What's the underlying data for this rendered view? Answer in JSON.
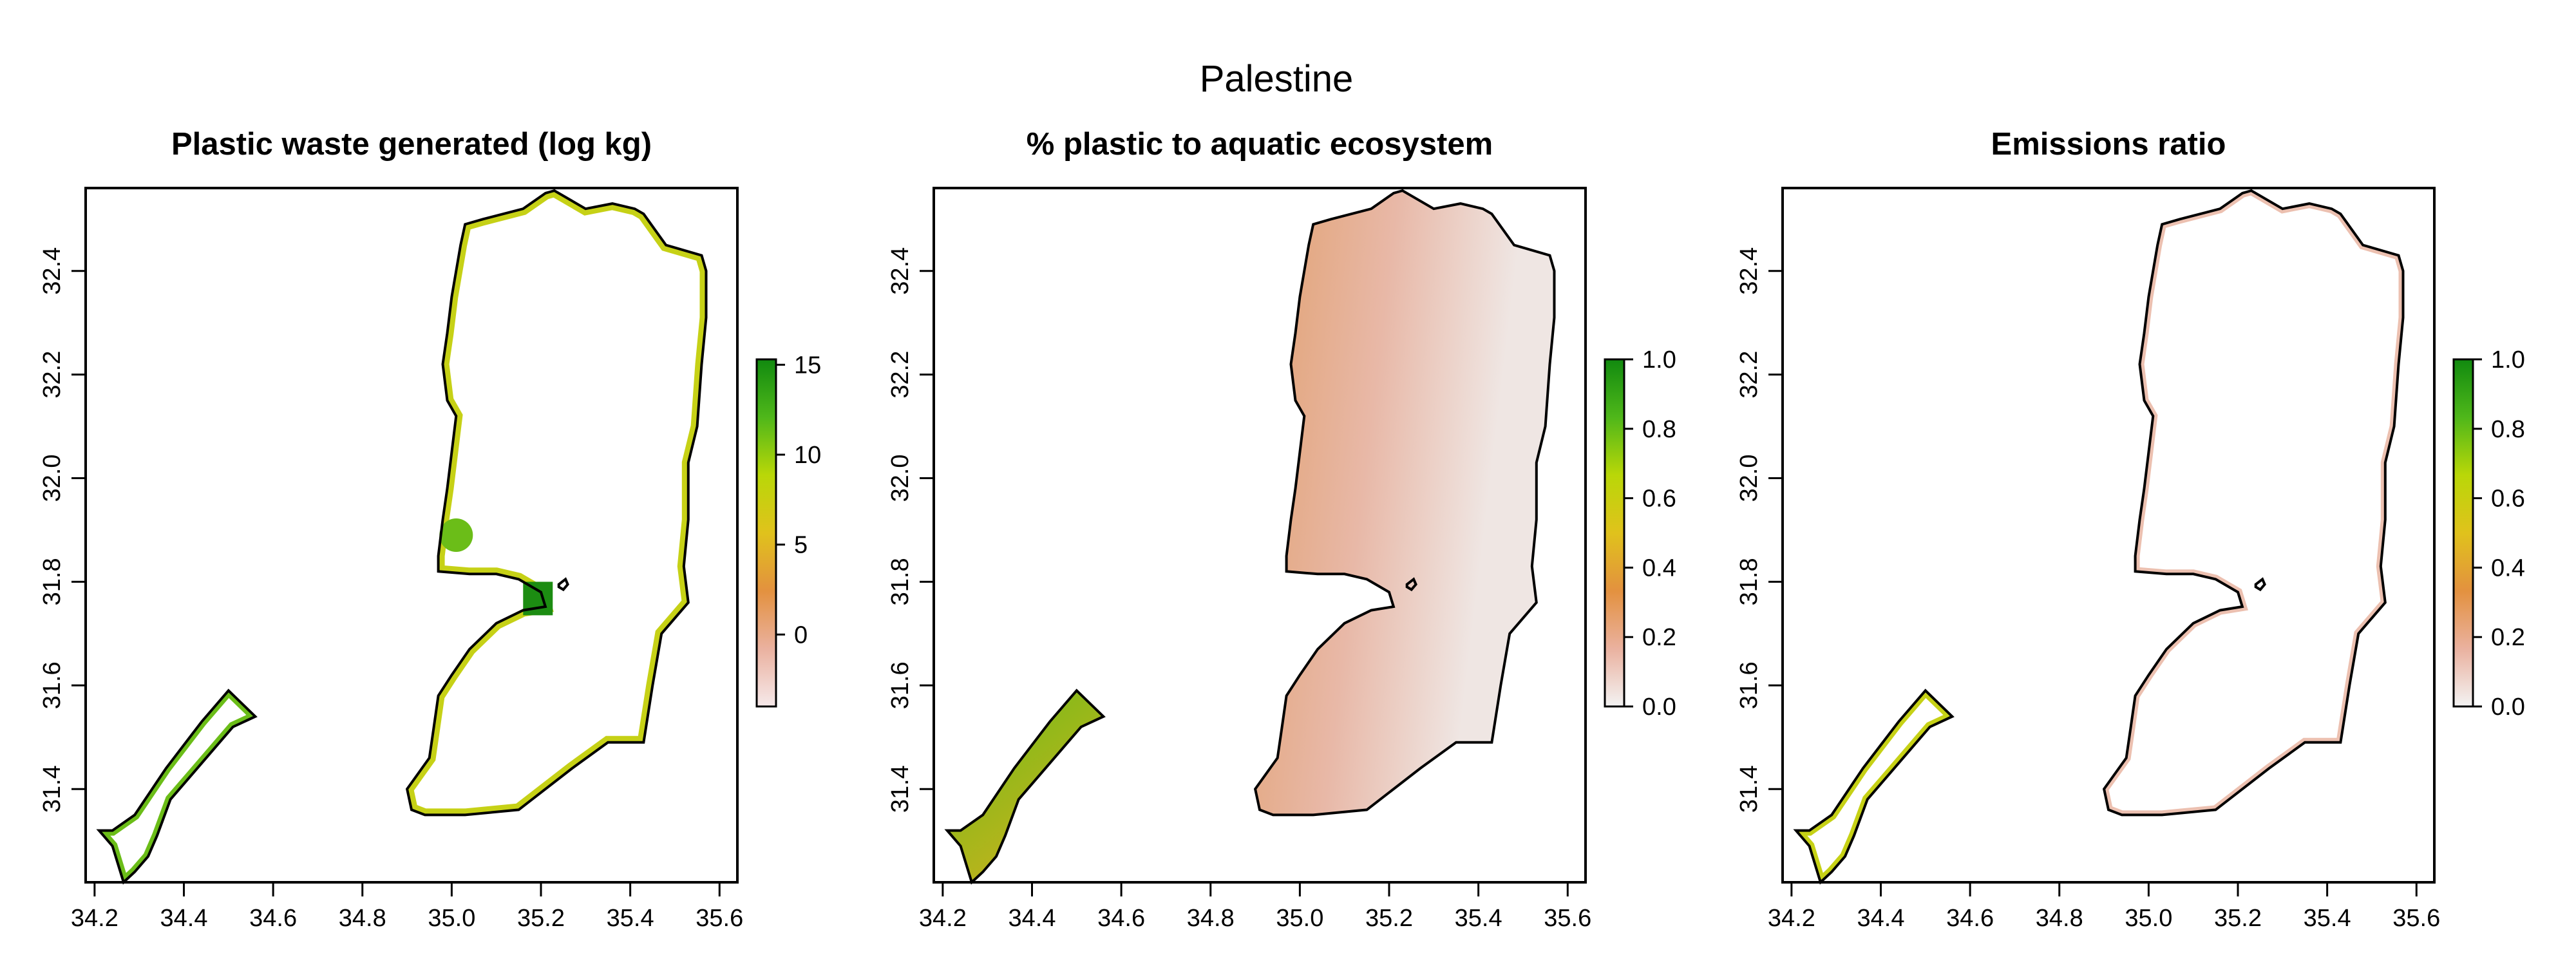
{
  "figure": {
    "title": "Palestine"
  },
  "panels": [
    {
      "title": "Plastic waste generated (log kg)",
      "legend": {
        "ticks": [
          "15",
          "10",
          "5",
          "0"
        ],
        "colors": [
          "#f6e9ea",
          "#eab19f",
          "#e3913f",
          "#e0c21c",
          "#b9d708",
          "#4fb71a",
          "#118a0f"
        ]
      },
      "fill": {
        "west_bank": "edge",
        "gaza": "edge",
        "edge_colors": [
          "#c6d116",
          "#e3b91e",
          "#6bbd18"
        ]
      }
    },
    {
      "title": "% plastic to aquatic ecosystem",
      "legend": {
        "ticks": [
          "1.0",
          "0.8",
          "0.6",
          "0.4",
          "0.2",
          "0.0"
        ],
        "colors": [
          "#f3f3f3",
          "#eab19f",
          "#e3913f",
          "#e0c21c",
          "#b9d708",
          "#4fb71a",
          "#118a0f"
        ]
      },
      "fill": {
        "west_bank": "gradient",
        "gaza": "green",
        "wb_colors": [
          "#e1a06e",
          "#e8b8a7",
          "#efe6e3"
        ],
        "gaza_colors": [
          "#6bbd18",
          "#c8b21d"
        ]
      }
    },
    {
      "title": "Emissions ratio",
      "legend": {
        "ticks": [
          "1.0",
          "0.8",
          "0.6",
          "0.4",
          "0.2",
          "0.0"
        ],
        "colors": [
          "#f3f3f3",
          "#eab19f",
          "#e3913f",
          "#e0c21c",
          "#b9d708",
          "#4fb71a",
          "#118a0f"
        ]
      },
      "fill": {
        "west_bank": "faint",
        "gaza": "edge",
        "edge_colors": [
          "#e8b59d",
          "#eac8c0",
          "#c6d116"
        ]
      }
    }
  ],
  "axes": {
    "xticks": [
      "34.2",
      "34.4",
      "34.6",
      "34.8",
      "35.0",
      "35.2",
      "35.4",
      "35.6"
    ],
    "yticks": [
      "31.4",
      "31.6",
      "31.8",
      "32.0",
      "32.2",
      "32.4"
    ]
  }
}
